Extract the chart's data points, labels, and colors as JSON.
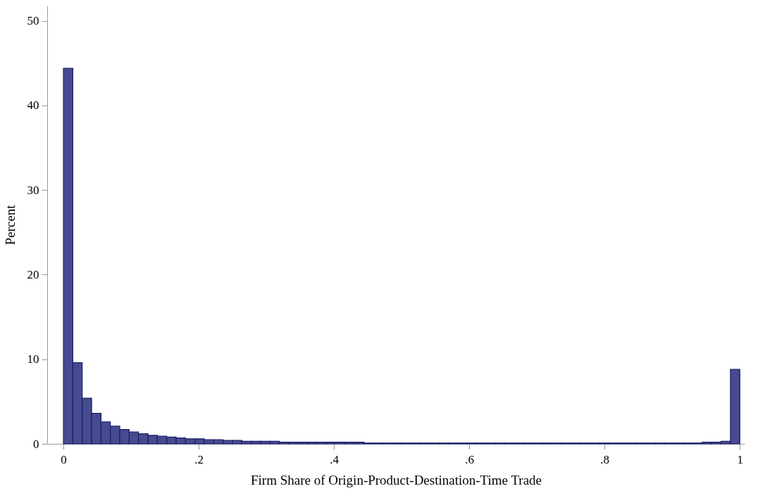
{
  "chart_data": {
    "type": "histogram",
    "xlabel": "Firm Share of Origin-Product-Destination-Time Trade",
    "ylabel": "Percent",
    "color": "#464a8e",
    "bins": [
      0,
      0.0139,
      0.0278,
      0.0417,
      0.0556,
      0.0694,
      0.0833,
      0.0972,
      0.1111,
      0.125,
      0.1389,
      0.1528,
      0.1667,
      0.1806,
      0.1944,
      0.2083,
      0.2222,
      0.2361,
      0.25,
      0.2639,
      0.2778,
      0.2917,
      0.3056,
      0.3194,
      0.3333,
      0.3472,
      0.3611,
      0.375,
      0.3889,
      0.4028,
      0.4167,
      0.4306,
      0.4444,
      0.4583,
      0.4722,
      0.4861,
      0.5,
      0.5139,
      0.5278,
      0.5417,
      0.5556,
      0.5694,
      0.5833,
      0.5972,
      0.6111,
      0.625,
      0.6389,
      0.6528,
      0.6667,
      0.6806,
      0.6944,
      0.7083,
      0.7222,
      0.7361,
      0.75,
      0.7639,
      0.7778,
      0.7917,
      0.8056,
      0.8194,
      0.8333,
      0.8472,
      0.8611,
      0.875,
      0.8889,
      0.9028,
      0.9167,
      0.9306,
      0.9444,
      0.9583,
      0.9722,
      0.9861,
      1
    ],
    "values": [
      44.4,
      9.6,
      5.4,
      3.6,
      2.6,
      2.1,
      1.7,
      1.4,
      1.2,
      1.0,
      0.9,
      0.8,
      0.7,
      0.6,
      0.6,
      0.5,
      0.5,
      0.4,
      0.4,
      0.3,
      0.3,
      0.3,
      0.3,
      0.2,
      0.2,
      0.2,
      0.2,
      0.2,
      0.2,
      0.2,
      0.2,
      0.2,
      0.1,
      0.1,
      0.1,
      0.1,
      0.1,
      0.1,
      0.1,
      0.1,
      0.1,
      0.1,
      0.1,
      0.1,
      0.1,
      0.1,
      0.1,
      0.1,
      0.1,
      0.1,
      0.1,
      0.1,
      0.1,
      0.1,
      0.1,
      0.1,
      0.1,
      0.1,
      0.1,
      0.1,
      0.1,
      0.1,
      0.1,
      0.1,
      0.1,
      0.1,
      0.1,
      0.1,
      0.2,
      0.2,
      0.3,
      8.8
    ],
    "xlim": [
      -0.024,
      1.007
    ],
    "ylim": [
      0,
      51.8
    ],
    "xticks": [
      0,
      {
        "value": 0.2,
        "label": ".2"
      },
      {
        "value": 0.4,
        "label": ".4"
      },
      {
        "value": 0.6,
        "label": ".6"
      },
      {
        "value": 0.8,
        "label": ".8"
      },
      1
    ],
    "yticks": [
      0,
      10,
      20,
      30,
      40,
      50
    ],
    "grid": false
  }
}
